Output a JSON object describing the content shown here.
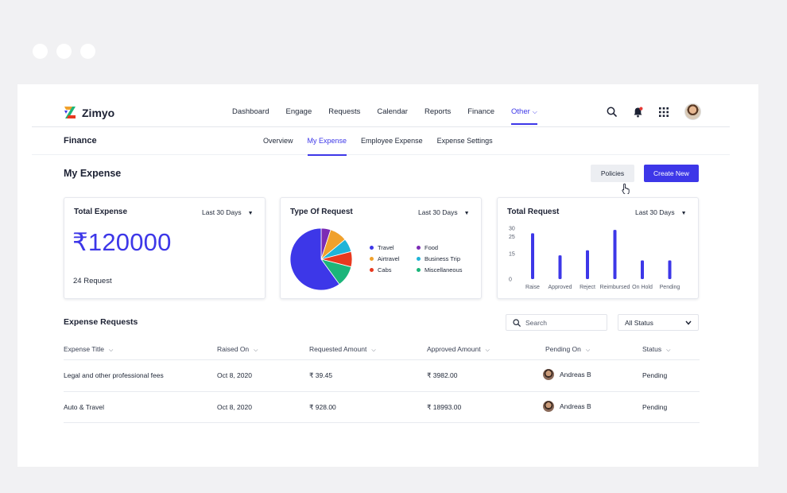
{
  "app": {
    "brand": "Zimyo",
    "nav": [
      "Dashboard",
      "Engage",
      "Requests",
      "Calendar",
      "Reports",
      "Finance"
    ],
    "nav_active": "Other",
    "colors": {
      "accent": "#3d37e8",
      "notification_dot": "#e53935"
    }
  },
  "subnav": {
    "title": "Finance",
    "tabs": [
      "Overview",
      "My Expense",
      "Employee Expense",
      "Expense Settings"
    ]
  },
  "page": {
    "title": "My Expense",
    "policies_label": "Policies",
    "create_label": "Create New"
  },
  "cards": {
    "total_expense": {
      "title": "Total Expense",
      "filter": "Last 30 Days",
      "amount": "₹120000",
      "requests": "24 Request"
    },
    "type_of_request": {
      "title": "Type Of Request",
      "filter": "Last 30 Days"
    },
    "total_request": {
      "title": "Total Request",
      "filter": "Last 30 Days"
    }
  },
  "chart_data": [
    {
      "type": "pie",
      "title": "Type Of Request",
      "labels": [
        "Travel",
        "Food",
        "Airtravel",
        "Business Trip",
        "Cabs",
        "Miscellaneous"
      ],
      "values": [
        60,
        5,
        9,
        7,
        8,
        11
      ],
      "colors": [
        "#3d37e8",
        "#7b2bb5",
        "#f0a12c",
        "#1fb4d8",
        "#e8391f",
        "#1bb57a"
      ]
    },
    {
      "type": "bar",
      "title": "Total Request",
      "categories": [
        "Raise",
        "Approved",
        "Reject",
        "Reimbursed",
        "On Hold",
        "Pending"
      ],
      "values": [
        27,
        14,
        17,
        29,
        11,
        11
      ],
      "yticks": [
        0,
        15,
        25,
        30
      ],
      "color": "#3d37e8"
    }
  ],
  "requests": {
    "title": "Expense Requests",
    "search_placeholder": "Search",
    "status_filter": "All Status",
    "columns": [
      "Expense Title",
      "Raised On",
      "Requested Amount",
      "Approved Amount",
      "Pending On",
      "Status"
    ],
    "rows": [
      {
        "title": "Legal and other professional fees",
        "raised": "Oct 8, 2020",
        "requested": "₹ 39.45",
        "approved": "₹ 3982.00",
        "pending_on": "Andreas B",
        "status": "Pending"
      },
      {
        "title": "Auto & Travel",
        "raised": "Oct 8, 2020",
        "requested": "₹ 928.00",
        "approved": "₹ 18993.00",
        "pending_on": "Andreas B",
        "status": "Pending"
      }
    ]
  }
}
